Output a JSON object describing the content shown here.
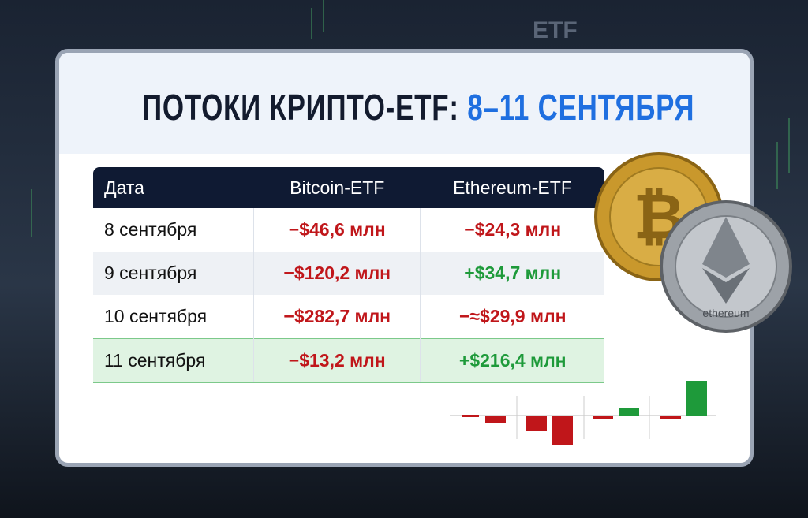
{
  "header": {
    "title": "ПОТОКИ КРИПТО-ETF:",
    "title_highlight": "8–11 СЕНТЯБРЯ"
  },
  "table": {
    "columns": [
      "Дата",
      "Bitcoin-ETF",
      "Ethereum-ETF"
    ],
    "rows": [
      [
        "8 сентября",
        "−$46,6 млн",
        "−$24,3 млн"
      ],
      [
        "9 сентября",
        "−$120,2 млн",
        "+$34,7 млн"
      ],
      [
        "10 сентября",
        "−$282,7 млн",
        "−≈$29,9 млн"
      ],
      [
        "11 сентября",
        "−$13,2 млн",
        "+$216,4 млн"
      ]
    ]
  },
  "background": {
    "label": "ETF"
  },
  "coin": {
    "label": "ethereum"
  }
}
